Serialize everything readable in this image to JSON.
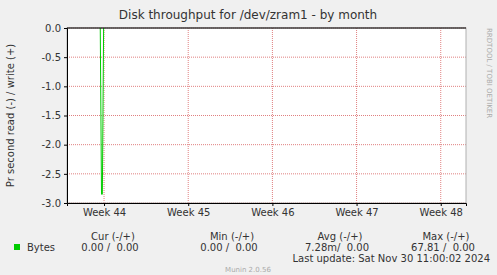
{
  "chart_data": {
    "type": "line",
    "title": "Disk throughput for /dev/zram1 - by month",
    "y_label": "Pr second read (-) / write (+)",
    "watermark": "RRDTOOL / TOBI OETIKER",
    "series": [
      {
        "name": "Bytes",
        "color": "#00cc00",
        "x": [
          43.955,
          43.97,
          43.98,
          43.995
        ],
        "values": [
          0,
          -2.85,
          -2.85,
          0
        ]
      }
    ],
    "xlim": [
      43.56,
      48.3
    ],
    "xticks": [
      {
        "value": 44,
        "label": "Week 44"
      },
      {
        "value": 45,
        "label": "Week 45"
      },
      {
        "value": 46,
        "label": "Week 46"
      },
      {
        "value": 47,
        "label": "Week 47"
      },
      {
        "value": 48,
        "label": "Week 48"
      }
    ],
    "ylim": [
      -3,
      0
    ],
    "yticks": [
      {
        "value": -3,
        "label": "-3.0"
      },
      {
        "value": -2.5,
        "label": "-2.5"
      },
      {
        "value": -2,
        "label": "-2.0"
      },
      {
        "value": -1.5,
        "label": "-1.5"
      },
      {
        "value": -1,
        "label": "-1.0"
      },
      {
        "value": -0.5,
        "label": "-0.5"
      },
      {
        "value": 0,
        "label": "0.0"
      }
    ],
    "grid": true,
    "stats_headers": [
      "Cur (-/+)",
      "Min (-/+)",
      "Avg (-/+)",
      "Max (-/+)"
    ],
    "stats_values": [
      "0.00 /  0.00",
      "0.00 /  0.00",
      "7.28m/  0.00",
      "67.81 /  0.00"
    ],
    "last_update": "Last update: Sat Nov 30 11:00:02 2024",
    "footer": "Munin 2.0.56"
  }
}
